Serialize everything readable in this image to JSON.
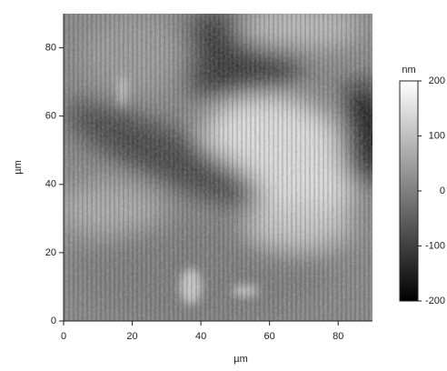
{
  "chart_data": {
    "type": "image",
    "xlabel": "µm",
    "ylabel": "µm",
    "xlim": [
      0,
      90
    ],
    "xticks": [
      0,
      20,
      40,
      60,
      80
    ],
    "ylim": [
      0,
      90
    ],
    "yticks": [
      0,
      20,
      40,
      60,
      80
    ],
    "colorbar_label": "nm",
    "zlim": [
      -200,
      200
    ],
    "zticks": [
      -200,
      -100,
      0,
      100,
      200
    ]
  }
}
